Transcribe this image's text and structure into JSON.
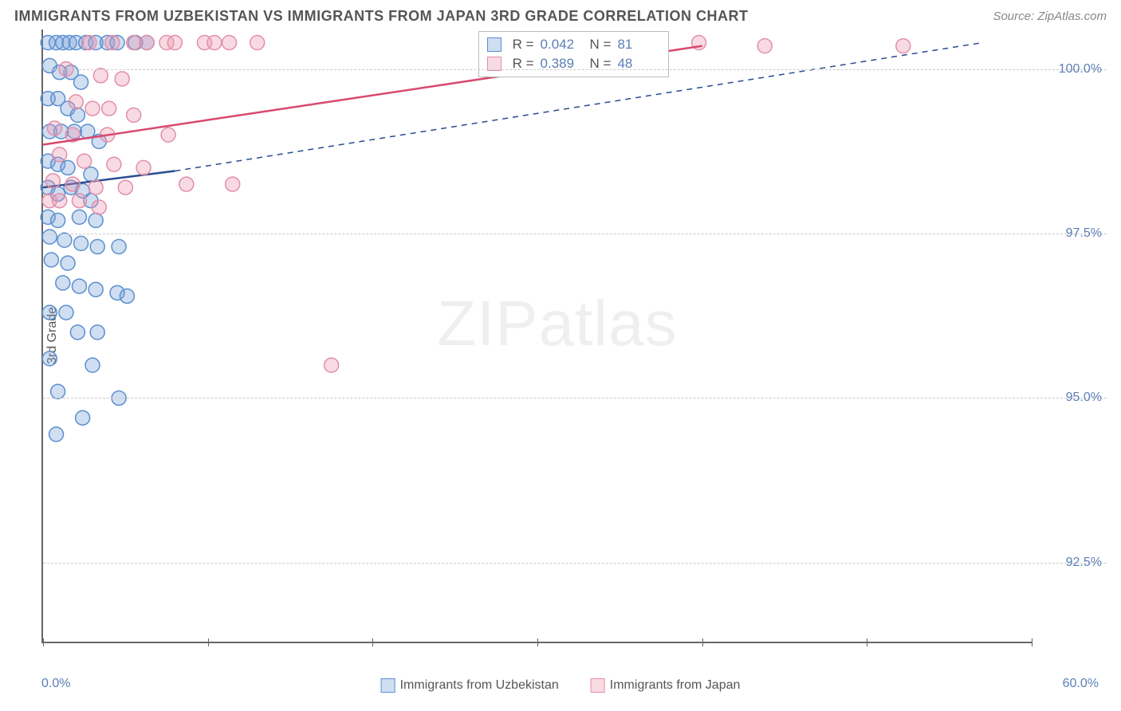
{
  "header": {
    "title": "IMMIGRANTS FROM UZBEKISTAN VS IMMIGRANTS FROM JAPAN 3RD GRADE CORRELATION CHART",
    "source": "Source: ZipAtlas.com"
  },
  "watermark": {
    "bold": "ZIP",
    "light": "atlas"
  },
  "chart": {
    "type": "scatter",
    "yaxis_title": "3rd Grade",
    "xmin": 0,
    "xmax": 60,
    "ymin": 91.3,
    "ymax": 100.6,
    "xlabel_min": "0.0%",
    "xlabel_max": "60.0%",
    "xtick_positions": [
      0,
      10,
      20,
      30,
      40,
      50,
      60
    ],
    "yticks": [
      {
        "v": 100.0,
        "label": "100.0%"
      },
      {
        "v": 97.5,
        "label": "97.5%"
      },
      {
        "v": 95.0,
        "label": "95.0%"
      },
      {
        "v": 92.5,
        "label": "92.5%"
      }
    ],
    "grid_color": "#cccccc",
    "background_color": "#ffffff",
    "series": [
      {
        "name": "Immigrants from Uzbekistan",
        "marker_fill": "rgba(120,160,215,0.35)",
        "marker_stroke": "#5b8fd0",
        "line_stroke": "#2a4d8f",
        "r_label": "R =",
        "r_value": "0.042",
        "n_label": "N =",
        "n_value": "81",
        "trend_solid": {
          "x1": 0,
          "y1": 98.2,
          "x2": 8,
          "y2": 98.45
        },
        "trend_dash": {
          "x1": 8,
          "y1": 98.45,
          "x2": 57,
          "y2": 100.4
        },
        "points": [
          [
            0.3,
            100.4
          ],
          [
            0.8,
            100.4
          ],
          [
            1.2,
            100.4
          ],
          [
            1.6,
            100.4
          ],
          [
            2.0,
            100.4
          ],
          [
            2.6,
            100.4
          ],
          [
            3.2,
            100.4
          ],
          [
            3.9,
            100.4
          ],
          [
            4.5,
            100.4
          ],
          [
            5.6,
            100.4
          ],
          [
            6.3,
            100.4
          ],
          [
            0.4,
            100.05
          ],
          [
            1.0,
            99.95
          ],
          [
            1.7,
            99.95
          ],
          [
            2.3,
            99.8
          ],
          [
            0.3,
            99.55
          ],
          [
            0.9,
            99.55
          ],
          [
            1.5,
            99.4
          ],
          [
            2.1,
            99.3
          ],
          [
            0.4,
            99.05
          ],
          [
            1.1,
            99.05
          ],
          [
            1.9,
            99.05
          ],
          [
            2.7,
            99.05
          ],
          [
            3.4,
            98.9
          ],
          [
            0.3,
            98.6
          ],
          [
            0.9,
            98.55
          ],
          [
            1.5,
            98.5
          ],
          [
            2.9,
            98.4
          ],
          [
            0.3,
            98.2
          ],
          [
            0.9,
            98.1
          ],
          [
            1.7,
            98.2
          ],
          [
            2.4,
            98.15
          ],
          [
            2.9,
            98.0
          ],
          [
            0.3,
            97.75
          ],
          [
            0.9,
            97.7
          ],
          [
            2.2,
            97.75
          ],
          [
            3.2,
            97.7
          ],
          [
            0.4,
            97.45
          ],
          [
            1.3,
            97.4
          ],
          [
            2.3,
            97.35
          ],
          [
            3.3,
            97.3
          ],
          [
            4.6,
            97.3
          ],
          [
            0.5,
            97.1
          ],
          [
            1.5,
            97.05
          ],
          [
            1.2,
            96.75
          ],
          [
            2.2,
            96.7
          ],
          [
            3.2,
            96.65
          ],
          [
            4.5,
            96.6
          ],
          [
            5.1,
            96.55
          ],
          [
            0.4,
            96.3
          ],
          [
            1.4,
            96.3
          ],
          [
            2.1,
            96.0
          ],
          [
            3.3,
            96.0
          ],
          [
            0.4,
            95.6
          ],
          [
            3.0,
            95.5
          ],
          [
            0.9,
            95.1
          ],
          [
            4.6,
            95.0
          ],
          [
            2.4,
            94.7
          ],
          [
            0.8,
            94.45
          ]
        ]
      },
      {
        "name": "Immigrants from Japan",
        "marker_fill": "rgba(235,150,175,0.35)",
        "marker_stroke": "#e38fa9",
        "line_stroke": "#d9486e",
        "r_label": "R =",
        "r_value": "0.389",
        "n_label": "N =",
        "n_value": "48",
        "trend_solid": {
          "x1": 0,
          "y1": 98.85,
          "x2": 40,
          "y2": 100.35
        },
        "trend_dash": null,
        "points": [
          [
            2.8,
            100.4
          ],
          [
            4.2,
            100.4
          ],
          [
            5.5,
            100.4
          ],
          [
            6.3,
            100.4
          ],
          [
            7.5,
            100.4
          ],
          [
            8.0,
            100.4
          ],
          [
            9.8,
            100.4
          ],
          [
            10.4,
            100.4
          ],
          [
            11.3,
            100.4
          ],
          [
            13.0,
            100.4
          ],
          [
            28.3,
            100.4
          ],
          [
            31.8,
            100.4
          ],
          [
            34.0,
            100.4
          ],
          [
            36.0,
            100.4
          ],
          [
            39.8,
            100.4
          ],
          [
            43.8,
            100.35
          ],
          [
            52.2,
            100.35
          ],
          [
            1.4,
            100.0
          ],
          [
            3.5,
            99.9
          ],
          [
            4.8,
            99.85
          ],
          [
            2.0,
            99.5
          ],
          [
            3.0,
            99.4
          ],
          [
            4.0,
            99.4
          ],
          [
            5.5,
            99.3
          ],
          [
            0.7,
            99.1
          ],
          [
            1.8,
            99.0
          ],
          [
            3.9,
            99.0
          ],
          [
            7.6,
            99.0
          ],
          [
            1.0,
            98.7
          ],
          [
            2.5,
            98.6
          ],
          [
            4.3,
            98.55
          ],
          [
            6.1,
            98.5
          ],
          [
            0.6,
            98.3
          ],
          [
            1.8,
            98.25
          ],
          [
            3.2,
            98.2
          ],
          [
            5.0,
            98.2
          ],
          [
            8.7,
            98.25
          ],
          [
            11.5,
            98.25
          ],
          [
            0.4,
            98.0
          ],
          [
            1.0,
            98.0
          ],
          [
            2.2,
            98.0
          ],
          [
            3.4,
            97.9
          ],
          [
            17.5,
            95.5
          ]
        ]
      }
    ]
  },
  "legend_bottom": {
    "items": [
      {
        "swatch_fill": "rgba(120,160,215,0.35)",
        "swatch_stroke": "#5b8fd0",
        "label": "Immigrants from Uzbekistan"
      },
      {
        "swatch_fill": "rgba(235,150,175,0.35)",
        "swatch_stroke": "#e38fa9",
        "label": "Immigrants from Japan"
      }
    ]
  }
}
